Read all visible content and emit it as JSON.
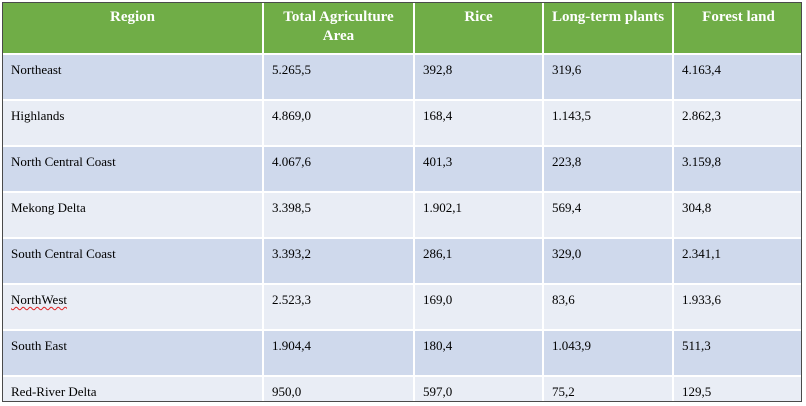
{
  "table": {
    "headers": [
      "Region",
      "Total Agriculture Area",
      "Rice",
      "Long-term plants",
      "Forest land"
    ],
    "rows": [
      [
        "Northeast",
        "5.265,5",
        "392,8",
        "319,6",
        "4.163,4"
      ],
      [
        "Highlands",
        "4.869,0",
        "168,4",
        "1.143,5",
        "2.862,3"
      ],
      [
        "North Central Coast",
        "4.067,6",
        "401,3",
        "223,8",
        "3.159,8"
      ],
      [
        "Mekong Delta",
        "3.398,5",
        "1.902,1",
        "569,4",
        "304,8"
      ],
      [
        "South Central Coast",
        "3.393,2",
        "286,1",
        "329,0",
        "2.341,1"
      ],
      [
        "NorthWest",
        "2.523,3",
        "169,0",
        "83,6",
        "1.933,6"
      ],
      [
        "South East",
        "1.904,4",
        "180,4",
        "1.043,9",
        "511,3"
      ],
      [
        "Red-River Delta",
        "950,0",
        "597,0",
        "75,2",
        "129,5"
      ]
    ]
  },
  "colors": {
    "header_bg": "#70ad47",
    "row_odd": "#cfd9ec",
    "row_even": "#e9edf5",
    "spellcheck_underline": "#d22"
  }
}
